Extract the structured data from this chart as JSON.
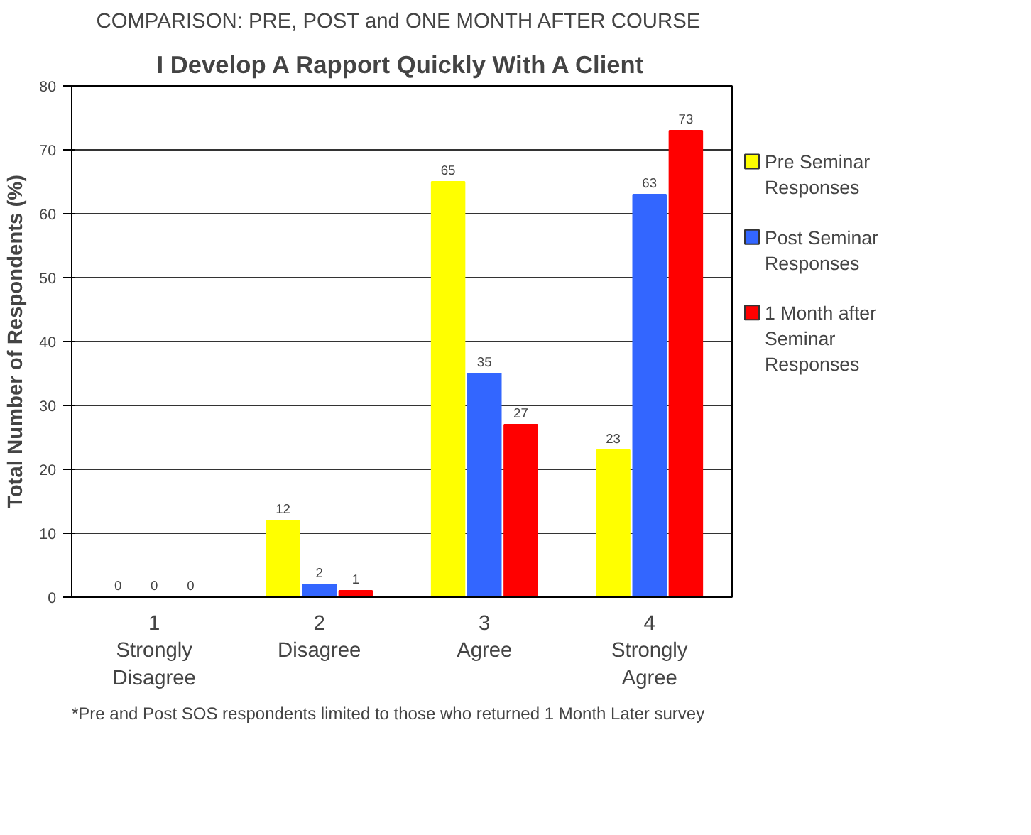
{
  "chart_data": {
    "type": "bar",
    "title": "COMPARISON: PRE,  POST and ONE MONTH AFTER COURSE",
    "subtitle": "I Develop A Rapport Quickly With A Client",
    "ylabel": "Total Number of Respondents (%)",
    "categories": [
      "1\nStrongly\nDisagree",
      "2\nDisagree",
      "3\nAgree",
      "4\nStrongly\nAgree"
    ],
    "series": [
      {
        "name": "Pre Seminar Responses",
        "color": "#ffff00",
        "values": [
          0,
          12,
          65,
          23
        ]
      },
      {
        "name": "Post Seminar Responses",
        "color": "#3366ff",
        "values": [
          0,
          2,
          35,
          63
        ]
      },
      {
        "name": "1 Month after Seminar Responses",
        "color": "#ff0000",
        "values": [
          0,
          1,
          27,
          73
        ]
      }
    ],
    "ylim": [
      0,
      80
    ],
    "yticks": [
      0,
      10,
      20,
      30,
      40,
      50,
      60,
      70,
      80
    ],
    "grid": "y",
    "legend": "right",
    "data_labels": true,
    "annotations": [
      "*Pre and Post SOS respondents limited to those who returned 1 Month Later survey"
    ]
  }
}
